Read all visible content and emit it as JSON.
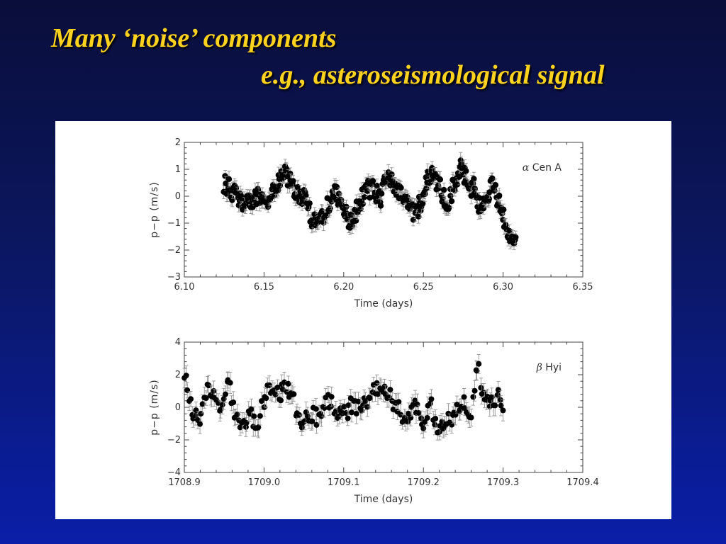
{
  "slide": {
    "title_line1": "Many ‘noise’ components",
    "title_line2": "e.g., asteroseismological signal",
    "title_color": "#ffd21e"
  },
  "chart_data": [
    {
      "type": "scatter",
      "series": [
        {
          "name": "α Cen A",
          "label_symbol": "α",
          "label_text": "Cen A"
        }
      ],
      "xlabel": "Time (days)",
      "ylabel": "p−p (m/s)",
      "xlim": [
        6.1,
        6.35
      ],
      "ylim": [
        -3,
        2
      ],
      "xticks": [
        6.1,
        6.15,
        6.2,
        6.25,
        6.3,
        6.35
      ],
      "xtick_labels": [
        "6.10",
        "6.15",
        "6.20",
        "6.25",
        "6.30",
        "6.35"
      ],
      "yticks": [
        -3,
        -2,
        -1,
        0,
        1,
        2
      ],
      "ytick_labels": [
        "−3",
        "−2",
        "−1",
        "0",
        "1",
        "2"
      ],
      "xrange_data": [
        6.125,
        6.308
      ],
      "trend": [
        [
          6.125,
          0.5
        ],
        [
          6.13,
          0.2
        ],
        [
          6.135,
          -0.2
        ],
        [
          6.14,
          -0.3
        ],
        [
          6.145,
          0.0
        ],
        [
          6.15,
          -0.3
        ],
        [
          6.155,
          0.2
        ],
        [
          6.16,
          0.6
        ],
        [
          6.163,
          0.9
        ],
        [
          6.167,
          0.5
        ],
        [
          6.17,
          0.1
        ],
        [
          6.175,
          0.0
        ],
        [
          6.18,
          -0.8
        ],
        [
          6.183,
          -1.1
        ],
        [
          6.188,
          -0.6
        ],
        [
          6.193,
          0.1
        ],
        [
          6.197,
          0.0
        ],
        [
          6.202,
          -0.8
        ],
        [
          6.206,
          -0.9
        ],
        [
          6.21,
          -0.2
        ],
        [
          6.215,
          0.3
        ],
        [
          6.22,
          0.2
        ],
        [
          6.223,
          -0.2
        ],
        [
          6.227,
          0.9
        ],
        [
          6.23,
          0.5
        ],
        [
          6.234,
          0.3
        ],
        [
          6.238,
          -0.2
        ],
        [
          6.243,
          -0.6
        ],
        [
          6.247,
          -0.4
        ],
        [
          6.25,
          0.0
        ],
        [
          6.253,
          0.7
        ],
        [
          6.257,
          0.7
        ],
        [
          6.262,
          0.1
        ],
        [
          6.265,
          -0.4
        ],
        [
          6.27,
          0.6
        ],
        [
          6.274,
          1.1
        ],
        [
          6.278,
          0.4
        ],
        [
          6.282,
          0.3
        ],
        [
          6.285,
          -0.3
        ],
        [
          6.29,
          0.0
        ],
        [
          6.293,
          0.5
        ],
        [
          6.298,
          -0.3
        ],
        [
          6.301,
          -1.0
        ],
        [
          6.304,
          -1.5
        ],
        [
          6.308,
          -1.8
        ]
      ],
      "scatter_amp": 0.35,
      "error_bar": 0.25,
      "n_points": 360,
      "legend_position": "top-right",
      "grid": false
    },
    {
      "type": "scatter",
      "series": [
        {
          "name": "β Hyi",
          "label_symbol": "β",
          "label_text": "Hyi"
        }
      ],
      "xlabel": "Time (days)",
      "ylabel": "p−p (m/s)",
      "xlim": [
        1708.9,
        1709.4
      ],
      "ylim": [
        -4,
        4
      ],
      "xticks": [
        1708.9,
        1709.0,
        1709.1,
        1709.2,
        1709.3,
        1709.4
      ],
      "xtick_labels": [
        "1708.9",
        "1709.0",
        "1709.1",
        "1709.2",
        "1709.3",
        "1709.4"
      ],
      "yticks": [
        -4,
        -2,
        0,
        2,
        4
      ],
      "ytick_labels": [
        "−4",
        "−2",
        "0",
        "2",
        "4"
      ],
      "xrange_data": [
        1708.9,
        1709.3
      ],
      "trend": [
        [
          1708.9,
          2.2
        ],
        [
          1708.905,
          1.0
        ],
        [
          1708.91,
          -0.3
        ],
        [
          1708.92,
          -0.8
        ],
        [
          1708.93,
          1.4
        ],
        [
          1708.94,
          0.2
        ],
        [
          1708.95,
          0.3
        ],
        [
          1708.955,
          1.5
        ],
        [
          1708.965,
          -0.6
        ],
        [
          1708.975,
          -1.0
        ],
        [
          1708.985,
          -0.5
        ],
        [
          1708.99,
          -1.2
        ],
        [
          1709.0,
          0.4
        ],
        [
          1709.01,
          1.5
        ],
        [
          1709.02,
          0.8
        ],
        [
          1709.03,
          1.2
        ],
        [
          1709.04,
          0.0
        ],
        [
          1709.05,
          -1.0
        ],
        [
          1709.06,
          -0.4
        ],
        [
          1709.07,
          -0.8
        ],
        [
          1709.08,
          0.5
        ],
        [
          1709.09,
          -0.2
        ],
        [
          1709.1,
          -0.5
        ],
        [
          1709.11,
          0.2
        ],
        [
          1709.12,
          -0.1
        ],
        [
          1709.13,
          0.5
        ],
        [
          1709.14,
          1.0
        ],
        [
          1709.15,
          1.5
        ],
        [
          1709.16,
          0.5
        ],
        [
          1709.17,
          -0.2
        ],
        [
          1709.18,
          -1.0
        ],
        [
          1709.19,
          0.2
        ],
        [
          1709.2,
          -1.0
        ],
        [
          1709.21,
          0.0
        ],
        [
          1709.22,
          -1.5
        ],
        [
          1709.23,
          -0.5
        ],
        [
          1709.24,
          -0.6
        ],
        [
          1709.25,
          0.5
        ],
        [
          1709.26,
          -0.8
        ],
        [
          1709.268,
          2.8
        ],
        [
          1709.275,
          0.5
        ],
        [
          1709.285,
          0.0
        ],
        [
          1709.292,
          0.8
        ],
        [
          1709.3,
          -0.3
        ]
      ],
      "scatter_amp": 0.55,
      "error_bar": 0.55,
      "n_points": 210,
      "legend_position": "top-right",
      "grid": false
    }
  ]
}
